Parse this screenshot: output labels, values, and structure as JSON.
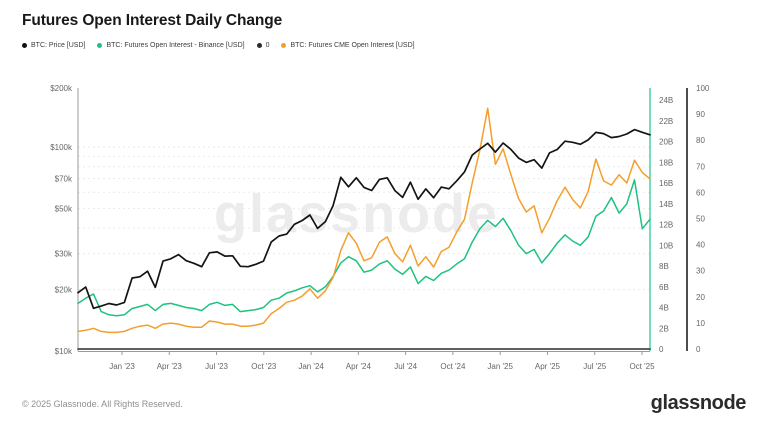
{
  "title": "Futures Open Interest Daily Change",
  "legend": [
    {
      "label": "BTC: Price [USD]",
      "color": "#111111"
    },
    {
      "label": "BTC: Futures Open Interest - Binance [USD]",
      "color": "#1ec27f"
    },
    {
      "label": "0",
      "color": "#2b2b2b"
    },
    {
      "label": "BTC: Futures CME Open Interest [USD]",
      "color": "#f59e2b"
    }
  ],
  "watermark": "glassnode",
  "footer": {
    "copyright": "© 2025 Glassnode. All Rights Reserved.",
    "brand": "glassnode"
  },
  "chart_data": {
    "type": "line",
    "title": "Futures Open Interest Daily Change",
    "x_tick_labels": [
      "Jan '23",
      "Apr '23",
      "Jul '23",
      "Oct '23",
      "Jan '24",
      "Apr '24",
      "Jul '24",
      "Oct '24",
      "Jan '25",
      "Apr '25",
      "Jul '25",
      "Oct '25"
    ],
    "x_span": {
      "start": "Oct 2022",
      "end": "Oct 2025"
    },
    "axes": {
      "left": {
        "scale": "log",
        "unit": "USD",
        "tick_labels": [
          "$200k",
          "$100k",
          "$70k",
          "$50k",
          "$30k",
          "$20k",
          "$10k"
        ],
        "tick_values_k": [
          200,
          100,
          70,
          50,
          30,
          20,
          10
        ],
        "grid_values_k": [
          100,
          90,
          80,
          70,
          60,
          50,
          40,
          30,
          20
        ],
        "line_color": "#9a9a9a"
      },
      "right_oi": {
        "scale": "linear",
        "unit": "USD billions",
        "tick_labels": [
          "24B",
          "22B",
          "20B",
          "18B",
          "16B",
          "14B",
          "12B",
          "10B",
          "8B",
          "6B",
          "4B",
          "2B",
          "0"
        ],
        "tick_values_b": [
          24,
          22,
          20,
          18,
          16,
          14,
          12,
          10,
          8,
          6,
          4,
          2,
          0
        ],
        "line_color": "#45d3a2"
      },
      "right_aux": {
        "scale": "linear",
        "tick_labels": [
          "100",
          "90",
          "80",
          "70",
          "60",
          "50",
          "40",
          "30",
          "20",
          "10",
          "0"
        ],
        "tick_values": [
          100,
          90,
          80,
          70,
          60,
          50,
          40,
          30,
          20,
          10,
          0
        ],
        "line_color": "#4d4d4d"
      }
    },
    "series": [
      {
        "name": "BTC: Futures Open Interest - Binance [USD]",
        "axis": "right_oi",
        "unit": "billion USD",
        "color": "#1ec27f",
        "values": [
          4.4,
          4.9,
          5.3,
          3.6,
          3.3,
          3.2,
          3.3,
          3.9,
          4.1,
          4.3,
          3.7,
          4.3,
          4.4,
          4.2,
          4.0,
          3.9,
          3.7,
          4.3,
          4.5,
          4.2,
          4.3,
          3.6,
          3.7,
          3.8,
          4.0,
          4.7,
          4.9,
          5.4,
          5.6,
          5.9,
          6.1,
          5.5,
          6.0,
          7.0,
          8.3,
          8.9,
          8.5,
          7.4,
          7.6,
          8.2,
          8.5,
          7.7,
          7.2,
          7.9,
          6.3,
          7.0,
          6.6,
          7.3,
          7.6,
          8.2,
          8.7,
          10.3,
          11.6,
          12.4,
          11.8,
          12.6,
          11.4,
          10.0,
          9.2,
          9.6,
          8.3,
          9.2,
          10.2,
          11.0,
          10.4,
          10.0,
          10.8,
          12.8,
          13.3,
          14.6,
          13.1,
          14.0,
          16.3,
          11.6,
          12.5
        ]
      },
      {
        "name": "BTC: Futures CME Open Interest [USD]",
        "axis": "right_oi",
        "unit": "billion USD",
        "color": "#f59e2b",
        "values": [
          1.7,
          1.8,
          2.0,
          1.7,
          1.6,
          1.6,
          1.7,
          2.0,
          2.2,
          2.3,
          2.0,
          2.4,
          2.5,
          2.4,
          2.2,
          2.1,
          2.1,
          2.7,
          2.6,
          2.4,
          2.4,
          2.2,
          2.2,
          2.3,
          2.5,
          3.4,
          3.9,
          4.5,
          4.7,
          5.1,
          5.8,
          4.9,
          5.6,
          6.9,
          9.5,
          11.2,
          10.2,
          8.5,
          8.8,
          10.3,
          10.8,
          9.2,
          8.4,
          10.0,
          8.0,
          8.9,
          7.9,
          9.4,
          9.8,
          11.3,
          12.5,
          16.0,
          19.2,
          23.2,
          17.8,
          19.3,
          16.8,
          14.5,
          13.2,
          13.8,
          11.2,
          12.6,
          14.3,
          15.6,
          14.4,
          13.6,
          15.2,
          18.3,
          16.2,
          15.8,
          16.8,
          16.0,
          18.2,
          17.0,
          16.4
        ]
      },
      {
        "name": "BTC: Price [USD]",
        "axis": "left",
        "unit": "thousand USD",
        "color": "#141414",
        "values": [
          19.3,
          20.6,
          16.2,
          16.6,
          17.1,
          16.8,
          17.3,
          22.8,
          23.1,
          24.6,
          20.5,
          27.6,
          28.3,
          29.7,
          27.7,
          26.9,
          25.9,
          30.3,
          30.6,
          29.2,
          29.3,
          26.0,
          25.9,
          26.6,
          27.6,
          34.2,
          36.6,
          37.4,
          41.8,
          43.6,
          46.4,
          39.9,
          43.1,
          51.6,
          71.0,
          63.8,
          70.6,
          63.4,
          61.2,
          69.4,
          70.6,
          61.1,
          56.6,
          67.2,
          55.4,
          62.3,
          56.4,
          63.6,
          62.4,
          68.3,
          75.5,
          91.3,
          97.8,
          104.3,
          94.4,
          104.6,
          97.3,
          88.2,
          84.0,
          86.6,
          78.8,
          93.6,
          97.2,
          106.8,
          105.4,
          103.1,
          108.4,
          117.9,
          116.3,
          111.2,
          112.6,
          115.8,
          121.7,
          118.0,
          114.8
        ]
      },
      {
        "name": "0",
        "axis": "right_aux",
        "color": "#2b2b2b",
        "constant": 0
      }
    ]
  }
}
